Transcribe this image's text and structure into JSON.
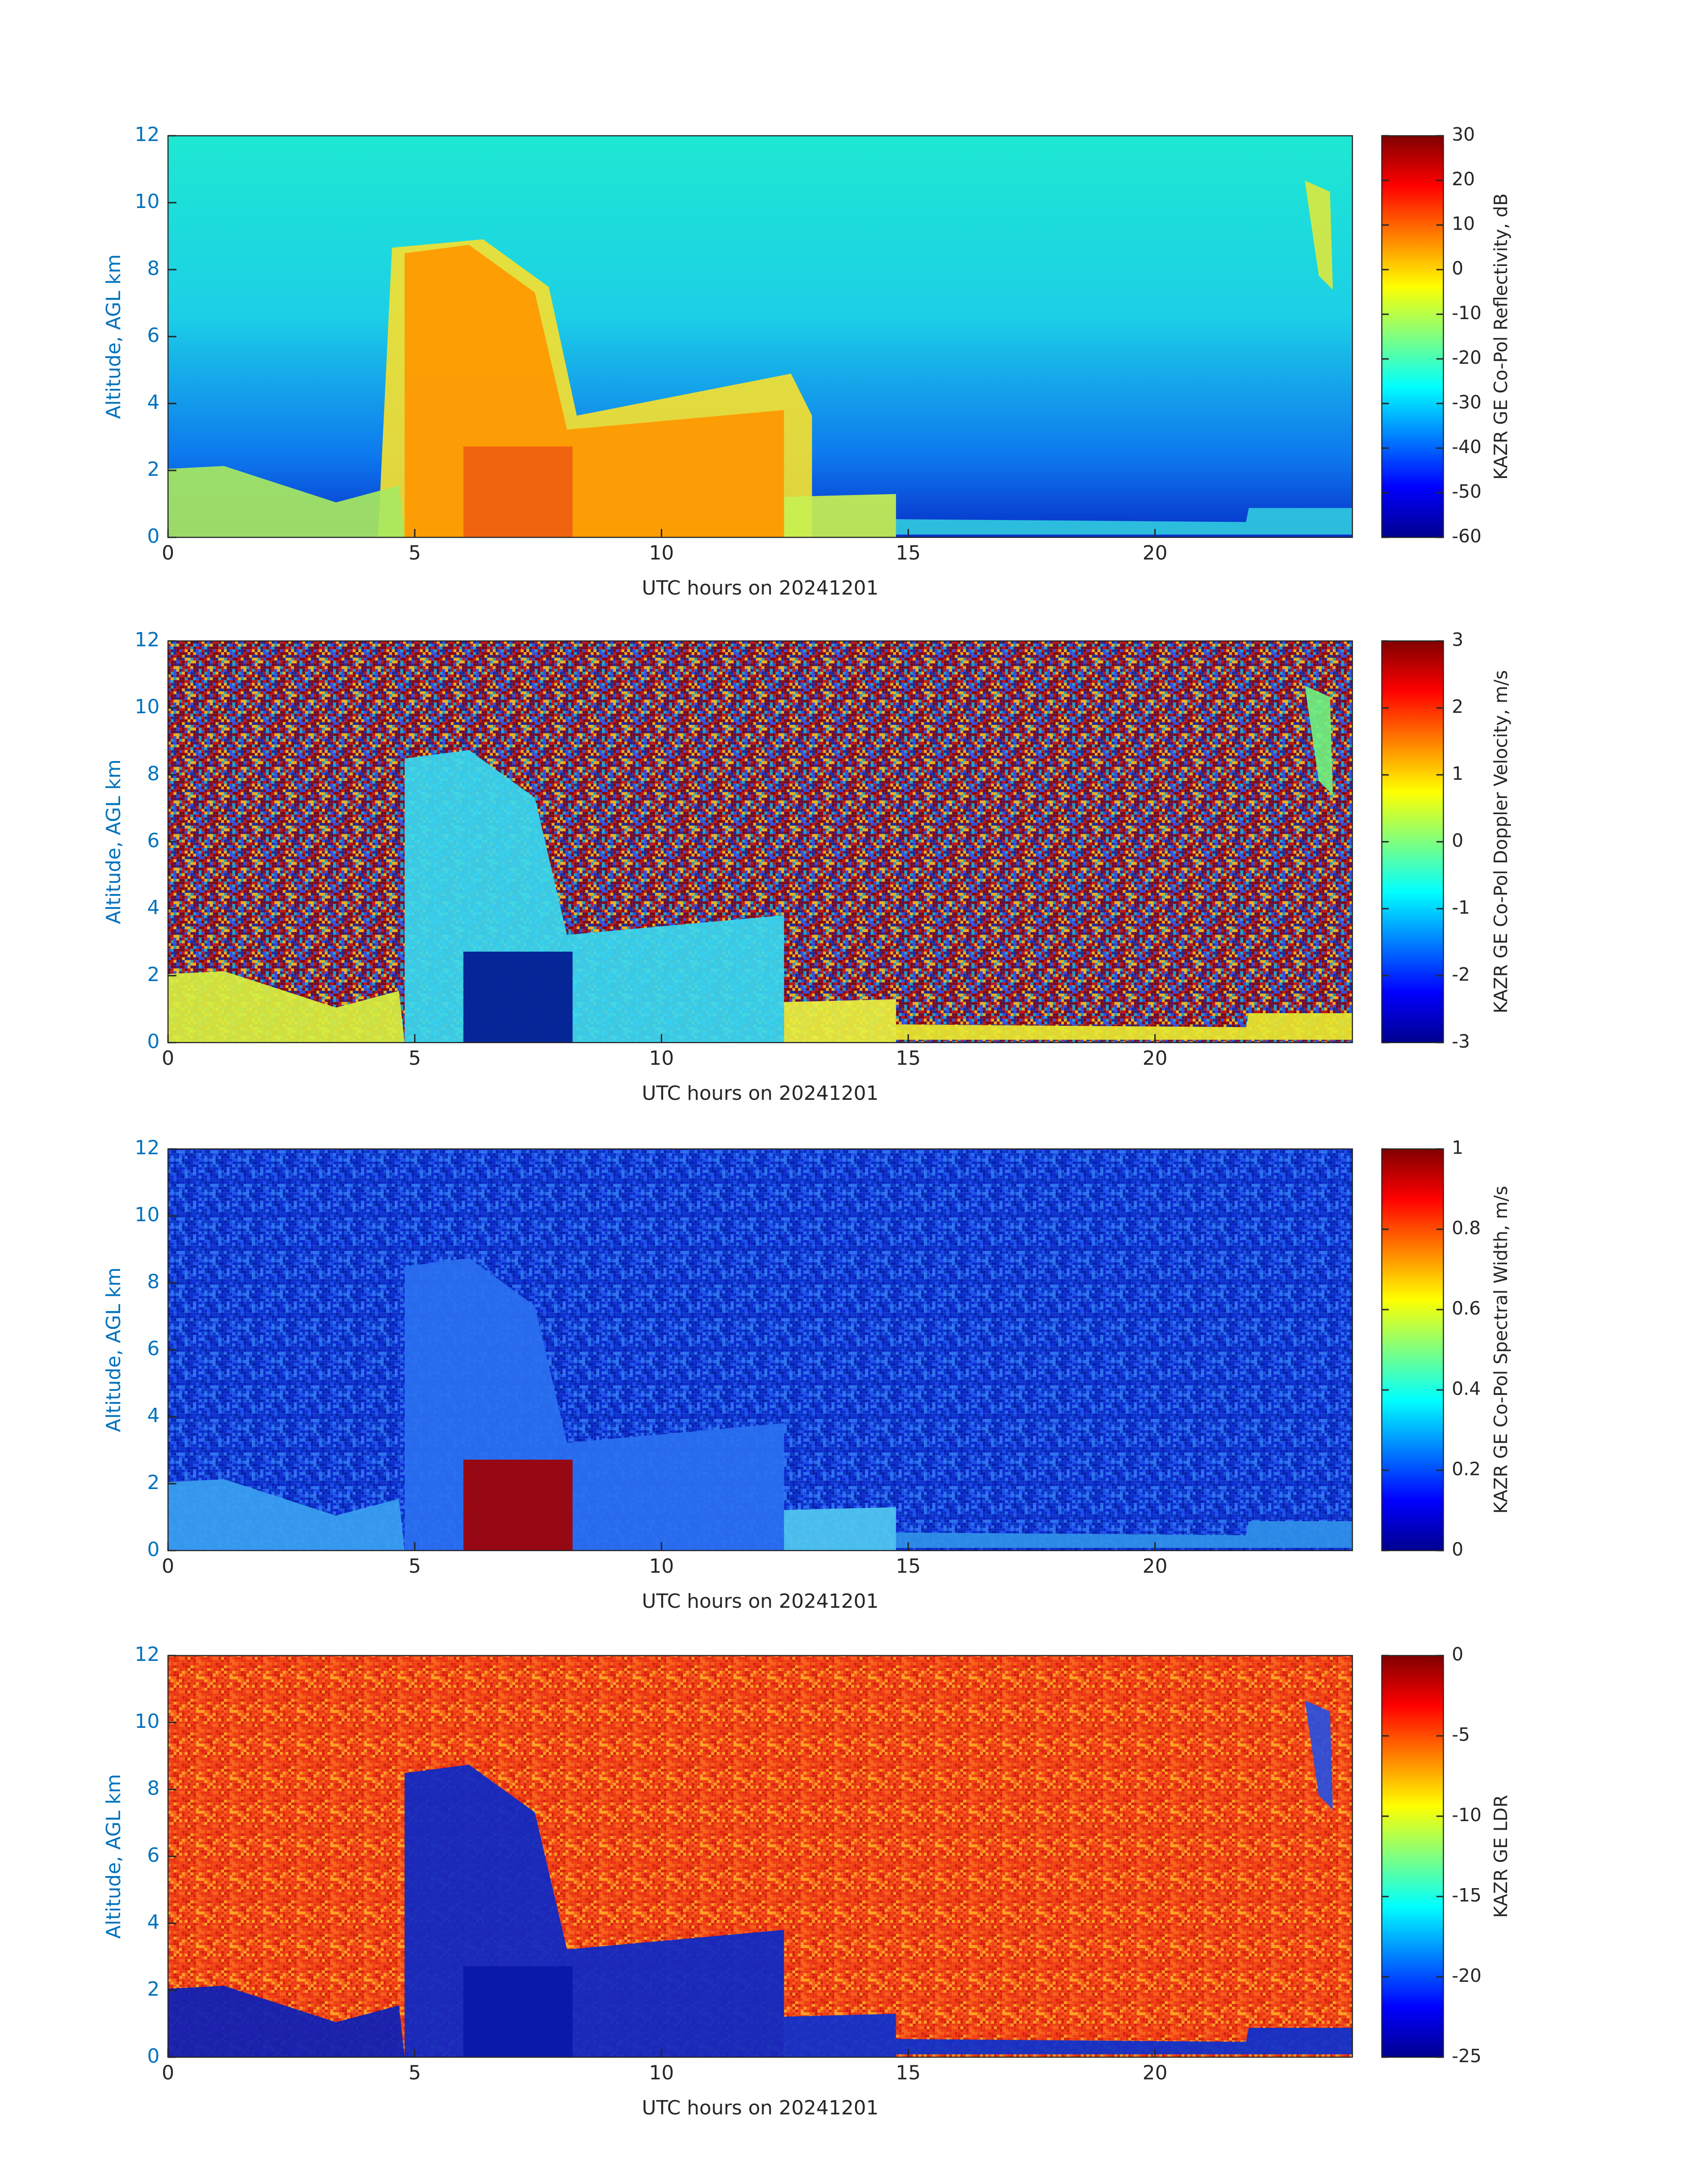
{
  "chart_data": [
    {
      "type": "heatmap",
      "xlabel": "UTC hours on 20241201",
      "ylabel": "Altitude, AGL km",
      "xlim": [
        0,
        24
      ],
      "xticks": [
        0,
        5,
        10,
        15,
        20
      ],
      "ylim": [
        0,
        12
      ],
      "yticks": [
        0,
        2,
        4,
        6,
        8,
        10,
        12
      ],
      "colormap": "jet",
      "colorbar_label": "KAZR GE Co-Pol Reflectivity, dB",
      "clim": [
        -60,
        30
      ],
      "cticks": [
        -60,
        -50,
        -40,
        -30,
        -20,
        -10,
        0,
        10,
        20,
        30
      ]
    },
    {
      "type": "heatmap",
      "xlabel": "UTC hours on 20241201",
      "ylabel": "Altitude, AGL km",
      "xlim": [
        0,
        24
      ],
      "xticks": [
        0,
        5,
        10,
        15,
        20
      ],
      "ylim": [
        0,
        12
      ],
      "yticks": [
        0,
        2,
        4,
        6,
        8,
        10,
        12
      ],
      "colormap": "jet",
      "colorbar_label": "KAZR GE Co-Pol Doppler Velocity, m/s",
      "clim": [
        -3,
        3
      ],
      "cticks": [
        -3,
        -2,
        -1,
        0,
        1,
        2,
        3
      ]
    },
    {
      "type": "heatmap",
      "xlabel": "UTC hours on 20241201",
      "ylabel": "Altitude, AGL km",
      "xlim": [
        0,
        24
      ],
      "xticks": [
        0,
        5,
        10,
        15,
        20
      ],
      "ylim": [
        0,
        12
      ],
      "yticks": [
        0,
        2,
        4,
        6,
        8,
        10,
        12
      ],
      "colormap": "jet",
      "colorbar_label": "KAZR GE Co-Pol Spectral Width, m/s",
      "clim": [
        0,
        1
      ],
      "cticks": [
        0,
        0.2,
        0.4,
        0.6,
        0.8,
        1
      ]
    },
    {
      "type": "heatmap",
      "xlabel": "UTC hours on 20241201",
      "ylabel": "Altitude, AGL km",
      "xlim": [
        0,
        24
      ],
      "xticks": [
        0,
        5,
        10,
        15,
        20
      ],
      "ylim": [
        0,
        12
      ],
      "yticks": [
        0,
        2,
        4,
        6,
        8,
        10,
        12
      ],
      "colormap": "jet",
      "colorbar_label": "KAZR GE LDR",
      "clim": [
        -25,
        0
      ],
      "cticks": [
        -25,
        -20,
        -15,
        -10,
        -5,
        0
      ]
    }
  ]
}
